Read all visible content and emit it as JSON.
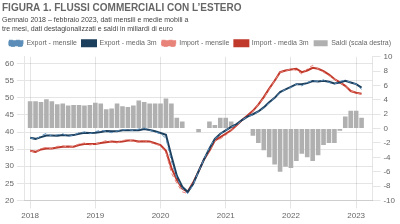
{
  "chart_data": {
    "type": "line",
    "title": "FIGURA 1. FLUSSI COMMERCIALI CON L’ESTERO",
    "subtitle": "Gennaio 2018 – febbraio 2023, dati mensili e medie mobili a tre mesi, dati destagionalizzati e saldi in miliardi di euro",
    "x": [
      2018,
      2018.0833333333,
      2018.1666666667,
      2018.25,
      2018.3333333333,
      2018.4166666667,
      2018.5,
      2018.5833333333,
      2018.6666666667,
      2018.75,
      2018.8333333333,
      2018.9166666667,
      2019,
      2019.0833333333,
      2019.1666666667,
      2019.25,
      2019.3333333333,
      2019.4166666667,
      2019.5,
      2019.5833333333,
      2019.6666666667,
      2019.75,
      2019.8333333333,
      2019.9166666667,
      2020,
      2020.0833333333,
      2020.1666666667,
      2020.25,
      2020.3333333333,
      2020.4166666667,
      2020.5,
      2020.5833333333,
      2020.6666666667,
      2020.75,
      2020.8333333333,
      2020.9166666667,
      2021,
      2021.0833333333,
      2021.1666666667,
      2021.25,
      2021.3333333333,
      2021.4166666667,
      2021.5,
      2021.5833333333,
      2021.6666666667,
      2021.75,
      2021.8333333333,
      2021.9166666667,
      2022,
      2022.0833333333,
      2022.1666666667,
      2022.25,
      2022.3333333333,
      2022.4166666667,
      2022.5,
      2022.5833333333,
      2022.6666666667,
      2022.75,
      2022.8333333333,
      2022.9166666667,
      2023,
      2023.0833333333
    ],
    "xlim": [
      2017.92,
      2023.25
    ],
    "xticks": [
      2018,
      2019,
      2020,
      2021,
      2022,
      2023
    ],
    "ylim": [
      20,
      62
    ],
    "yticks": [
      20,
      25,
      30,
      35,
      40,
      45,
      50,
      55,
      60
    ],
    "y2lim": [
      -10,
      10
    ],
    "y2ticks": [
      -10,
      -8,
      -6,
      -4,
      -2,
      0,
      2,
      4,
      6,
      8,
      10
    ],
    "grid": true,
    "legend": "top",
    "series": [
      {
        "name": "Saldi (scala destra)",
        "type": "bar",
        "axis": "y2",
        "color": "#b0b0b0",
        "values": [
          3.8,
          3.8,
          3.7,
          4.1,
          3.8,
          3.4,
          3.5,
          3.2,
          3.3,
          3.3,
          3.2,
          3.3,
          3.6,
          3.5,
          2.7,
          2.8,
          3.5,
          3.1,
          3.0,
          3.2,
          3.9,
          3.7,
          3.5,
          3.5,
          3.5,
          4.2,
          3.5,
          1.5,
          1.0,
          0.0,
          0.0,
          -0.5,
          0.0,
          1.0,
          0.5,
          1.5,
          1.5,
          1.0,
          0.0,
          0.0,
          0.0,
          -1.0,
          -2.0,
          -3.0,
          -4.0,
          -5.0,
          -6.0,
          -5.3,
          -5.5,
          -4.5,
          -3.5,
          -4.0,
          -4.5,
          -3.7,
          -2.3,
          -2.0,
          -2.0,
          -0.3,
          1.7,
          2.5,
          2.5,
          1.5
        ]
      },
      {
        "name": "Export - mensile",
        "type": "line",
        "color": "#5b8db8",
        "line_style": "dashed",
        "values": [
          38.3,
          37.8,
          38.9,
          39.6,
          38.8,
          39.2,
          39.5,
          38.7,
          39.1,
          39.8,
          40.0,
          39.5,
          40.1,
          40.5,
          40.2,
          39.8,
          40.3,
          40.6,
          40.8,
          40.4,
          40.9,
          41.2,
          40.5,
          40.0,
          39.5,
          38.2,
          31.5,
          26.5,
          23.5,
          22.0,
          24.5,
          28.5,
          32.0,
          35.5,
          38.0,
          39.5,
          40.5,
          41.5,
          42.0,
          43.5,
          44.5,
          45.0,
          46.0,
          47.0,
          48.5,
          50.0,
          51.5,
          52.5,
          53.0,
          54.0,
          53.5,
          54.5,
          55.0,
          54.8,
          55.2,
          54.5,
          54.0,
          54.8,
          55.2,
          54.5,
          54.0,
          52.5
        ]
      },
      {
        "name": "Export - media 3m",
        "type": "line",
        "color": "#1c3f5e",
        "line_style": "solid",
        "values": [
          38.3,
          38.0,
          38.5,
          39.0,
          39.0,
          38.9,
          39.1,
          39.0,
          39.1,
          39.5,
          39.8,
          39.7,
          39.8,
          40.0,
          40.3,
          40.2,
          40.2,
          40.5,
          40.5,
          40.5,
          40.5,
          40.9,
          40.6,
          40.2,
          39.7,
          39.2,
          33.0,
          27.2,
          24.0,
          22.5,
          24.8,
          28.5,
          32.0,
          35.2,
          38.0,
          39.5,
          40.5,
          41.5,
          42.3,
          43.5,
          44.5,
          45.2,
          46.0,
          47.2,
          48.7,
          50.0,
          51.7,
          52.5,
          53.2,
          54.0,
          54.0,
          54.3,
          54.9,
          54.8,
          55.0,
          54.7,
          54.2,
          54.5,
          55.0,
          54.5,
          54.0,
          53.0
        ]
      },
      {
        "name": "Import - mensile",
        "type": "line",
        "color": "#e8837a",
        "line_style": "dashed",
        "values": [
          34.5,
          34.0,
          35.2,
          35.5,
          35.0,
          35.8,
          36.0,
          35.5,
          35.8,
          36.5,
          36.8,
          36.2,
          36.5,
          37.0,
          37.5,
          37.0,
          36.8,
          37.5,
          37.8,
          37.2,
          37.0,
          37.5,
          37.0,
          36.5,
          36.0,
          34.0,
          28.0,
          25.0,
          22.5,
          22.0,
          25.0,
          28.5,
          32.0,
          34.5,
          37.5,
          38.0,
          39.0,
          40.5,
          42.0,
          43.5,
          44.5,
          46.0,
          48.0,
          50.0,
          52.5,
          55.0,
          57.5,
          57.8,
          58.5,
          58.0,
          57.0,
          58.5,
          59.5,
          58.5,
          57.5,
          56.5,
          55.5,
          54.5,
          53.5,
          52.0,
          51.5,
          51.0
        ]
      },
      {
        "name": "Import - media 3m",
        "type": "line",
        "color": "#c0392b",
        "line_style": "solid",
        "values": [
          34.5,
          34.2,
          34.9,
          35.2,
          35.2,
          35.5,
          35.7,
          35.8,
          35.7,
          36.2,
          36.5,
          36.5,
          36.5,
          36.8,
          37.0,
          37.2,
          37.1,
          37.2,
          37.5,
          37.5,
          37.2,
          37.3,
          37.2,
          36.7,
          36.2,
          34.5,
          29.5,
          26.0,
          23.5,
          22.5,
          25.2,
          28.5,
          32.0,
          34.5,
          37.5,
          38.5,
          39.5,
          40.5,
          42.0,
          43.5,
          44.8,
          46.2,
          48.0,
          50.2,
          52.7,
          55.0,
          57.5,
          58.0,
          58.3,
          58.5,
          57.5,
          58.0,
          58.8,
          58.5,
          57.8,
          56.8,
          55.5,
          54.5,
          53.5,
          52.0,
          51.5,
          51.2
        ]
      }
    ]
  }
}
